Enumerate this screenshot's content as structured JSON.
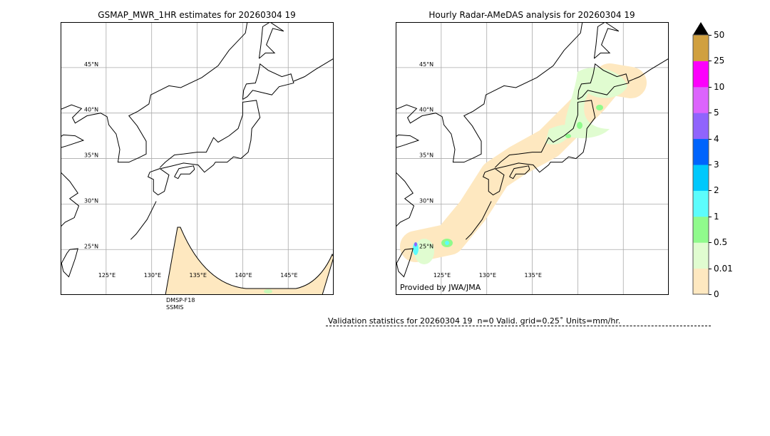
{
  "left_panel": {
    "title": "GSMAP_MWR_1HR estimates for 20260304 19",
    "lat_labels": [
      "45°N",
      "40°N",
      "35°N",
      "30°N",
      "25°N"
    ],
    "lon_labels": [
      "125°E",
      "130°E",
      "135°E",
      "140°E",
      "145°E"
    ],
    "satellite": "DMSP-F18",
    "sensor": "SSMIS"
  },
  "right_panel": {
    "title": "Hourly Radar-AMeDAS analysis for 20260304 19",
    "lat_labels": [
      "45°N",
      "40°N",
      "35°N",
      "30°N",
      "25°N"
    ],
    "lon_labels": [
      "125°E",
      "130°E",
      "135°E"
    ],
    "credit": "Provided by JWA/JMA"
  },
  "colorbar": {
    "labels": [
      "0",
      "0.01",
      "0.5",
      "1",
      "2",
      "3",
      "4",
      "5",
      "10",
      "25",
      "50"
    ],
    "colors": [
      "#fee8c0",
      "#e0fcd0",
      "#90fa8c",
      "#5cfcfc",
      "#00c8fc",
      "#0064fc",
      "#9064fc",
      "#dc64fc",
      "#fc00fc",
      "#d0a040"
    ],
    "extend_color": "#000000"
  },
  "validation": {
    "text": "Validation statistics for 20260304 19  n=0 Valid. grid=0.25˚ Units=mm/hr."
  }
}
